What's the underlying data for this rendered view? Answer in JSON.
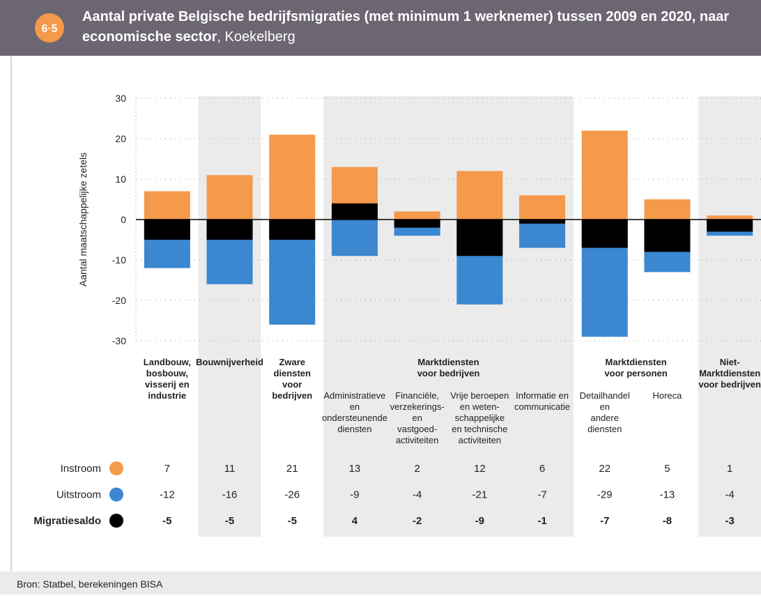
{
  "chart_data": {
    "type": "bar",
    "figure_number": "6·5",
    "title": "Aantal private Belgische bedrijfsmigraties (met minimum 1 werknemer) tussen 2009 en 2020, naar economische sector",
    "subtitle": ", Koekelberg",
    "y_label": "Aantal maatschappelijke zetels",
    "source": "Bron: Statbel, berekeningen BISA",
    "groups": [
      {
        "label": "Landbouw,\nbosbouw,\nvisserij en\nindustrie",
        "categories": [
          null
        ]
      },
      {
        "label": "Bouwnijverheid",
        "categories": [
          null
        ]
      },
      {
        "label": "Zware\ndiensten\nvoor\nbedrijven",
        "categories": [
          null
        ]
      },
      {
        "label": "Marktdiensten\nvoor bedrijven",
        "categories": [
          "Administratieve\nen\nondersteunende\ndiensten",
          "Financiële,\nverzekerings-\nen\nvastgoed-\nactiviteiten",
          "Vrije beroepen\nen weten-\nschappelijke\nen technische\nactiviteiten",
          "Informatie en\ncommunicatie"
        ]
      },
      {
        "label": "Marktdiensten\nvoor personen",
        "categories": [
          "Detailhandel\nen\nandere\ndiensten",
          "Horeca"
        ]
      },
      {
        "label": "Niet-\nMarktdiensten\nvoor bedrijven",
        "categories": [
          null
        ]
      }
    ],
    "series": [
      {
        "name": "Instroom",
        "color": "#f5994a",
        "values": [
          7,
          11,
          21,
          13,
          2,
          12,
          6,
          22,
          5,
          1
        ]
      },
      {
        "name": "Uitstroom",
        "color": "#3b87d0",
        "values": [
          -12,
          -16,
          -26,
          -9,
          -4,
          -21,
          -7,
          -29,
          -13,
          -4
        ]
      },
      {
        "name": "Migratiesaldo",
        "color": "#000000",
        "values": [
          -5,
          -5,
          -5,
          4,
          -2,
          -9,
          -1,
          -7,
          -8,
          -3
        ]
      }
    ],
    "ylim": [
      -30,
      30
    ],
    "yticks": [
      -30,
      -20,
      -10,
      0,
      10,
      20,
      30
    ],
    "grid": true
  }
}
